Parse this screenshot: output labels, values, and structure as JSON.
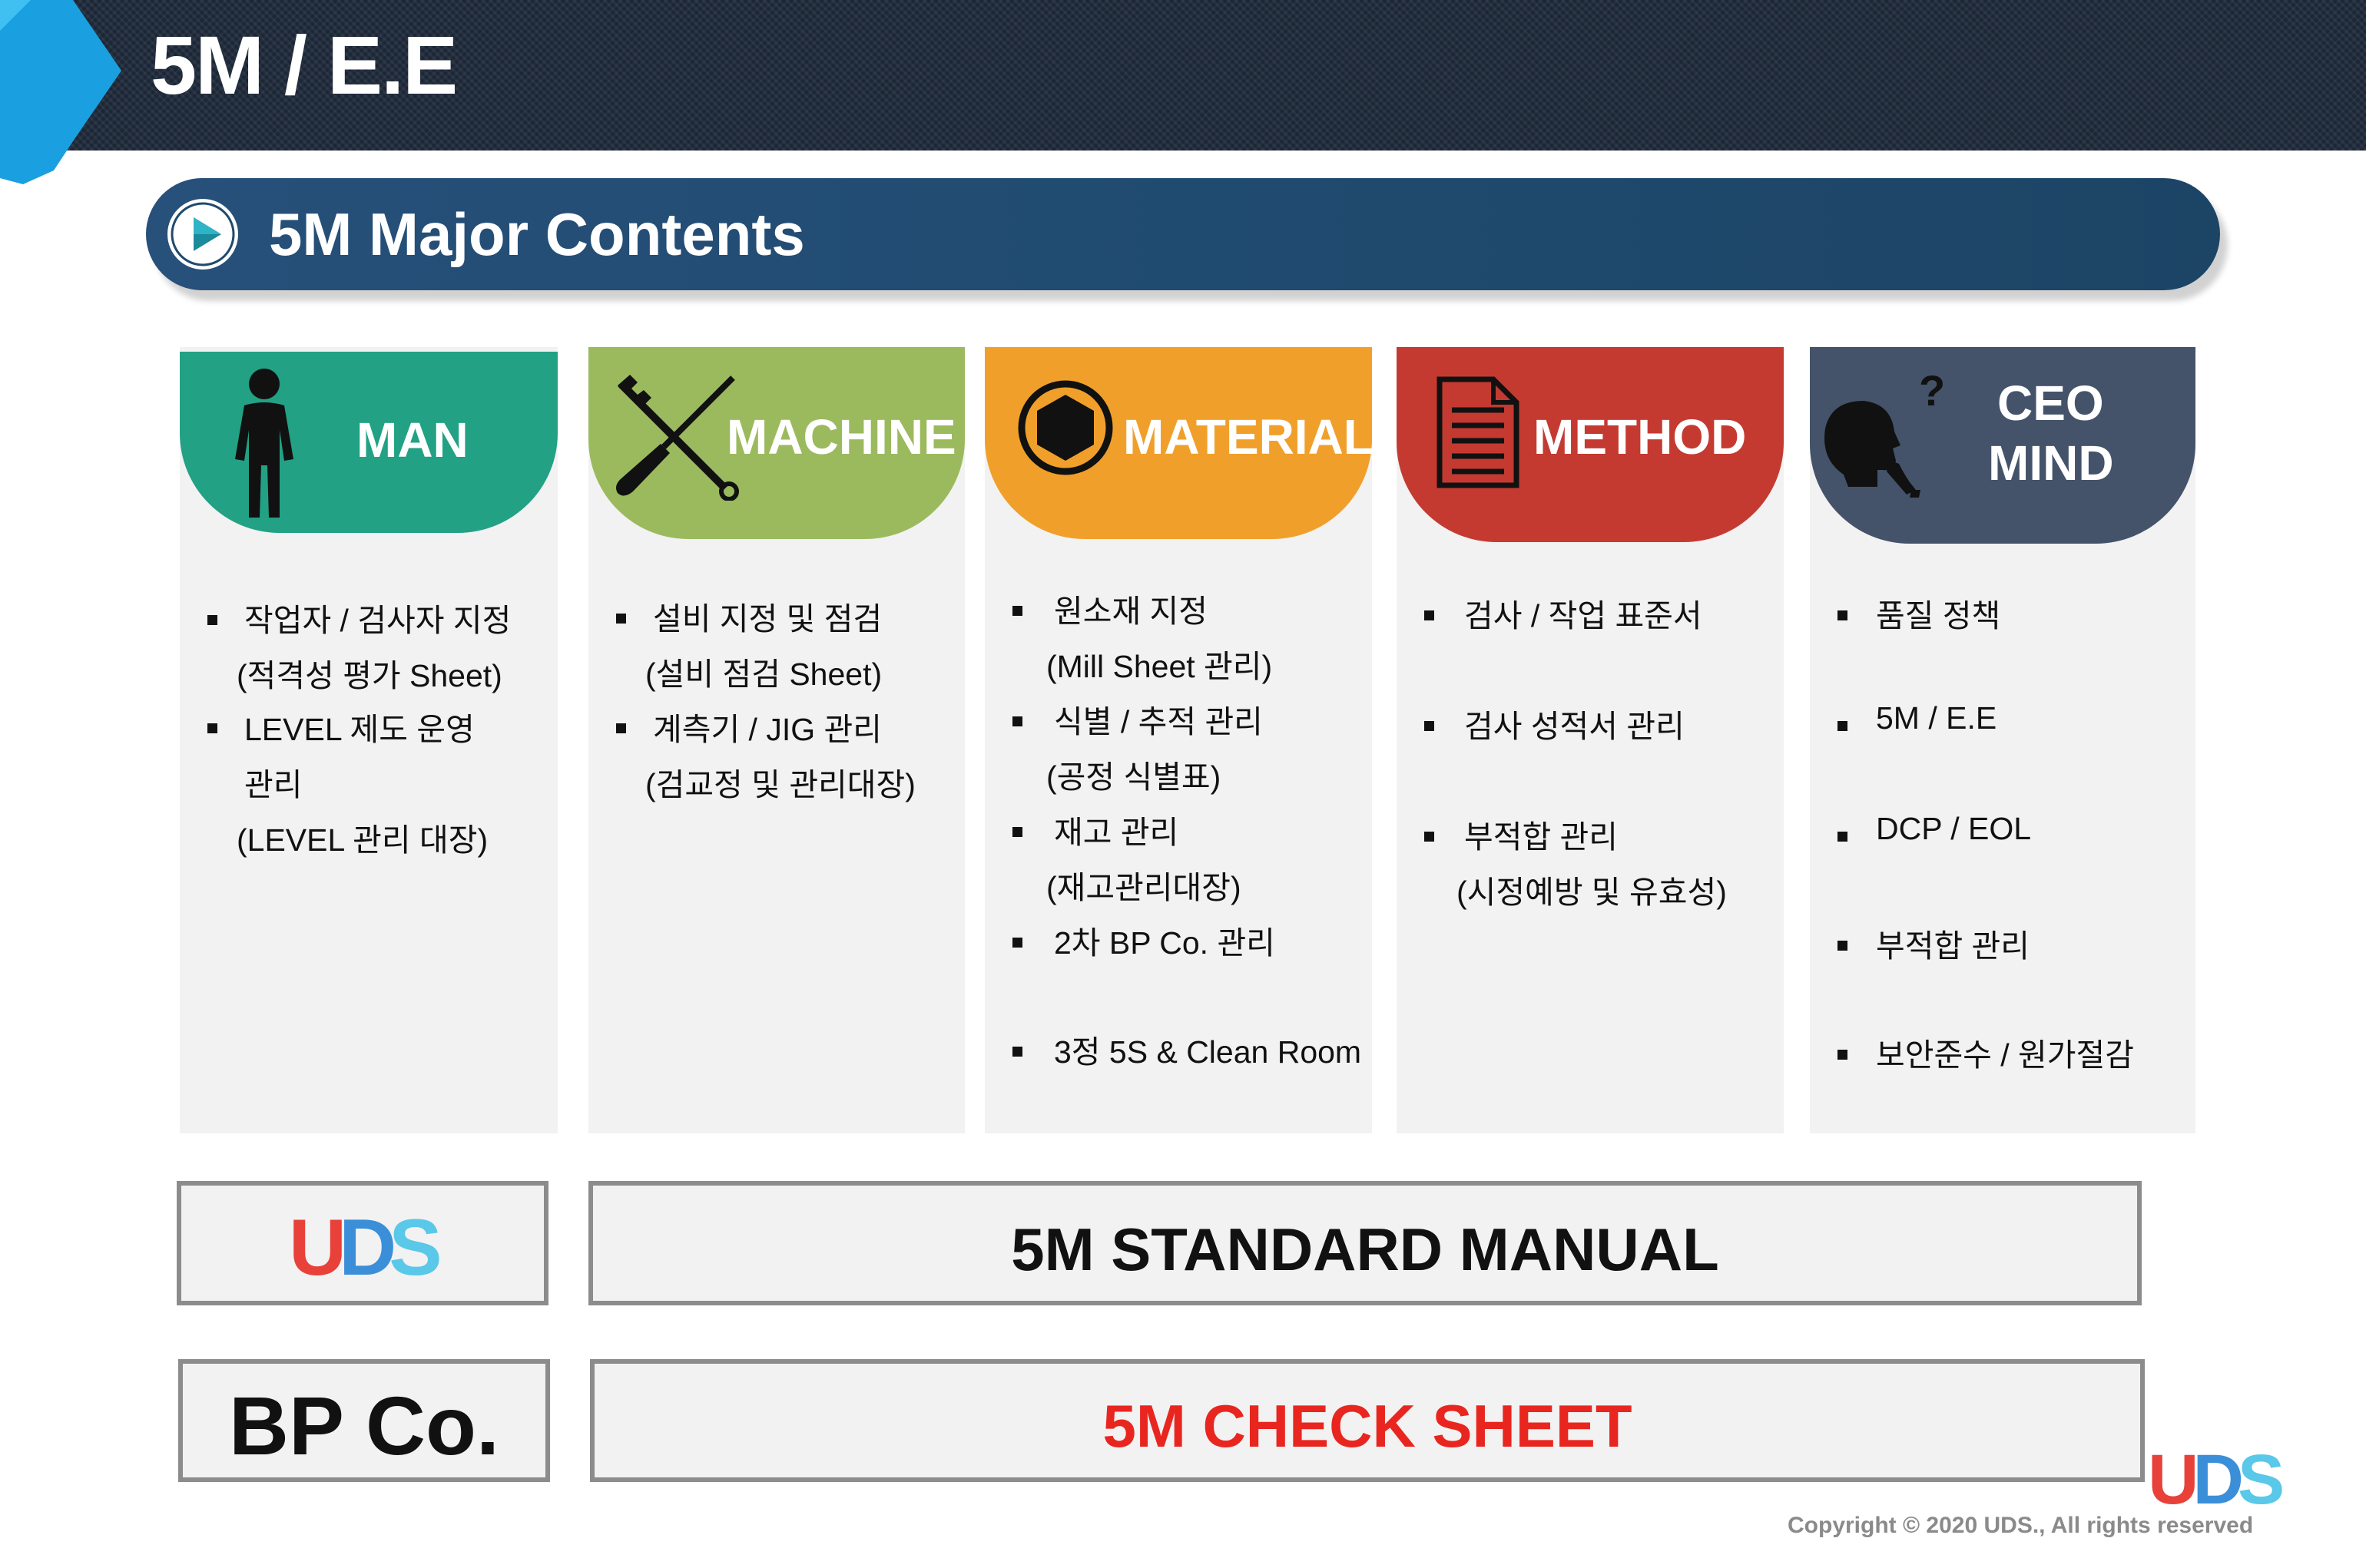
{
  "header": {
    "title": "5M / E.E"
  },
  "banner": {
    "title": "5M Major Contents"
  },
  "columns": [
    {
      "id": "man",
      "label_lines": [
        "MAN"
      ],
      "color": "#22a184",
      "icon": "person-icon",
      "items": [
        {
          "bullet": true,
          "text": "작업자 / 검사자 지정"
        },
        {
          "bullet": false,
          "text": "(적격성 평가 Sheet)"
        },
        {
          "bullet": true,
          "text": "LEVEL 제도 운영"
        },
        {
          "bullet": false,
          "text": "관리"
        },
        {
          "bullet": false,
          "text": "(LEVEL 관리 대장)"
        }
      ]
    },
    {
      "id": "machine",
      "label_lines": [
        "MACHINE"
      ],
      "color": "#9bba5e",
      "icon": "tools-icon",
      "items": [
        {
          "bullet": true,
          "text": "설비 지정 및 점검"
        },
        {
          "bullet": false,
          "text": "(설비 점검 Sheet)"
        },
        {
          "bullet": true,
          "text": "계측기 / JIG 관리"
        },
        {
          "bullet": false,
          "text": "(검교정 및 관리대장)"
        }
      ]
    },
    {
      "id": "material",
      "label_lines": [
        "MATERIAL"
      ],
      "color": "#f0a02a",
      "icon": "hex-nut-icon",
      "items": [
        {
          "bullet": true,
          "text": "원소재 지정"
        },
        {
          "bullet": false,
          "text": "(Mill Sheet 관리)"
        },
        {
          "bullet": true,
          "text": "식별 / 추적 관리"
        },
        {
          "bullet": false,
          "text": "(공정 식별표)"
        },
        {
          "bullet": true,
          "text": "재고 관리"
        },
        {
          "bullet": false,
          "text": "(재고관리대장)"
        },
        {
          "bullet": true,
          "text": "2차 BP Co. 관리"
        },
        {
          "bullet": true,
          "text": "3정 5S & Clean Room"
        }
      ]
    },
    {
      "id": "method",
      "label_lines": [
        "METHOD"
      ],
      "color": "#c43a31",
      "icon": "document-icon",
      "items": [
        {
          "bullet": true,
          "text": "검사 / 작업 표준서"
        },
        {
          "bullet": true,
          "text": "검사 성적서 관리"
        },
        {
          "bullet": true,
          "text": "부적합 관리"
        },
        {
          "bullet": false,
          "text": "(시정예방 및 유효성)"
        }
      ]
    },
    {
      "id": "ceo",
      "label_lines": [
        "CEO",
        "MIND"
      ],
      "color": "#44536a",
      "icon": "thinking-head-icon",
      "items": [
        {
          "bullet": true,
          "text": "품질 정책"
        },
        {
          "bullet": true,
          "text": "5M / E.E"
        },
        {
          "bullet": true,
          "text": "DCP / EOL"
        },
        {
          "bullet": true,
          "text": "부적합 관리"
        },
        {
          "bullet": true,
          "text": "보안준수 / 원가절감"
        }
      ]
    }
  ],
  "rows": [
    {
      "left_logo": "UDS",
      "right": "5M STANDARD MANUAL",
      "right_color": "#111111"
    },
    {
      "left": "BP Co.",
      "right": "5M CHECK SHEET",
      "right_color": "#e8261f"
    }
  ],
  "logo_text": "UDS",
  "footer": {
    "copyright": "Copyright © 2020 UDS., All rights reserved"
  },
  "colors": {
    "header_bg": "#1b2636",
    "banner_bg": "#1f4a6e",
    "accent": "#1aa0e0"
  }
}
